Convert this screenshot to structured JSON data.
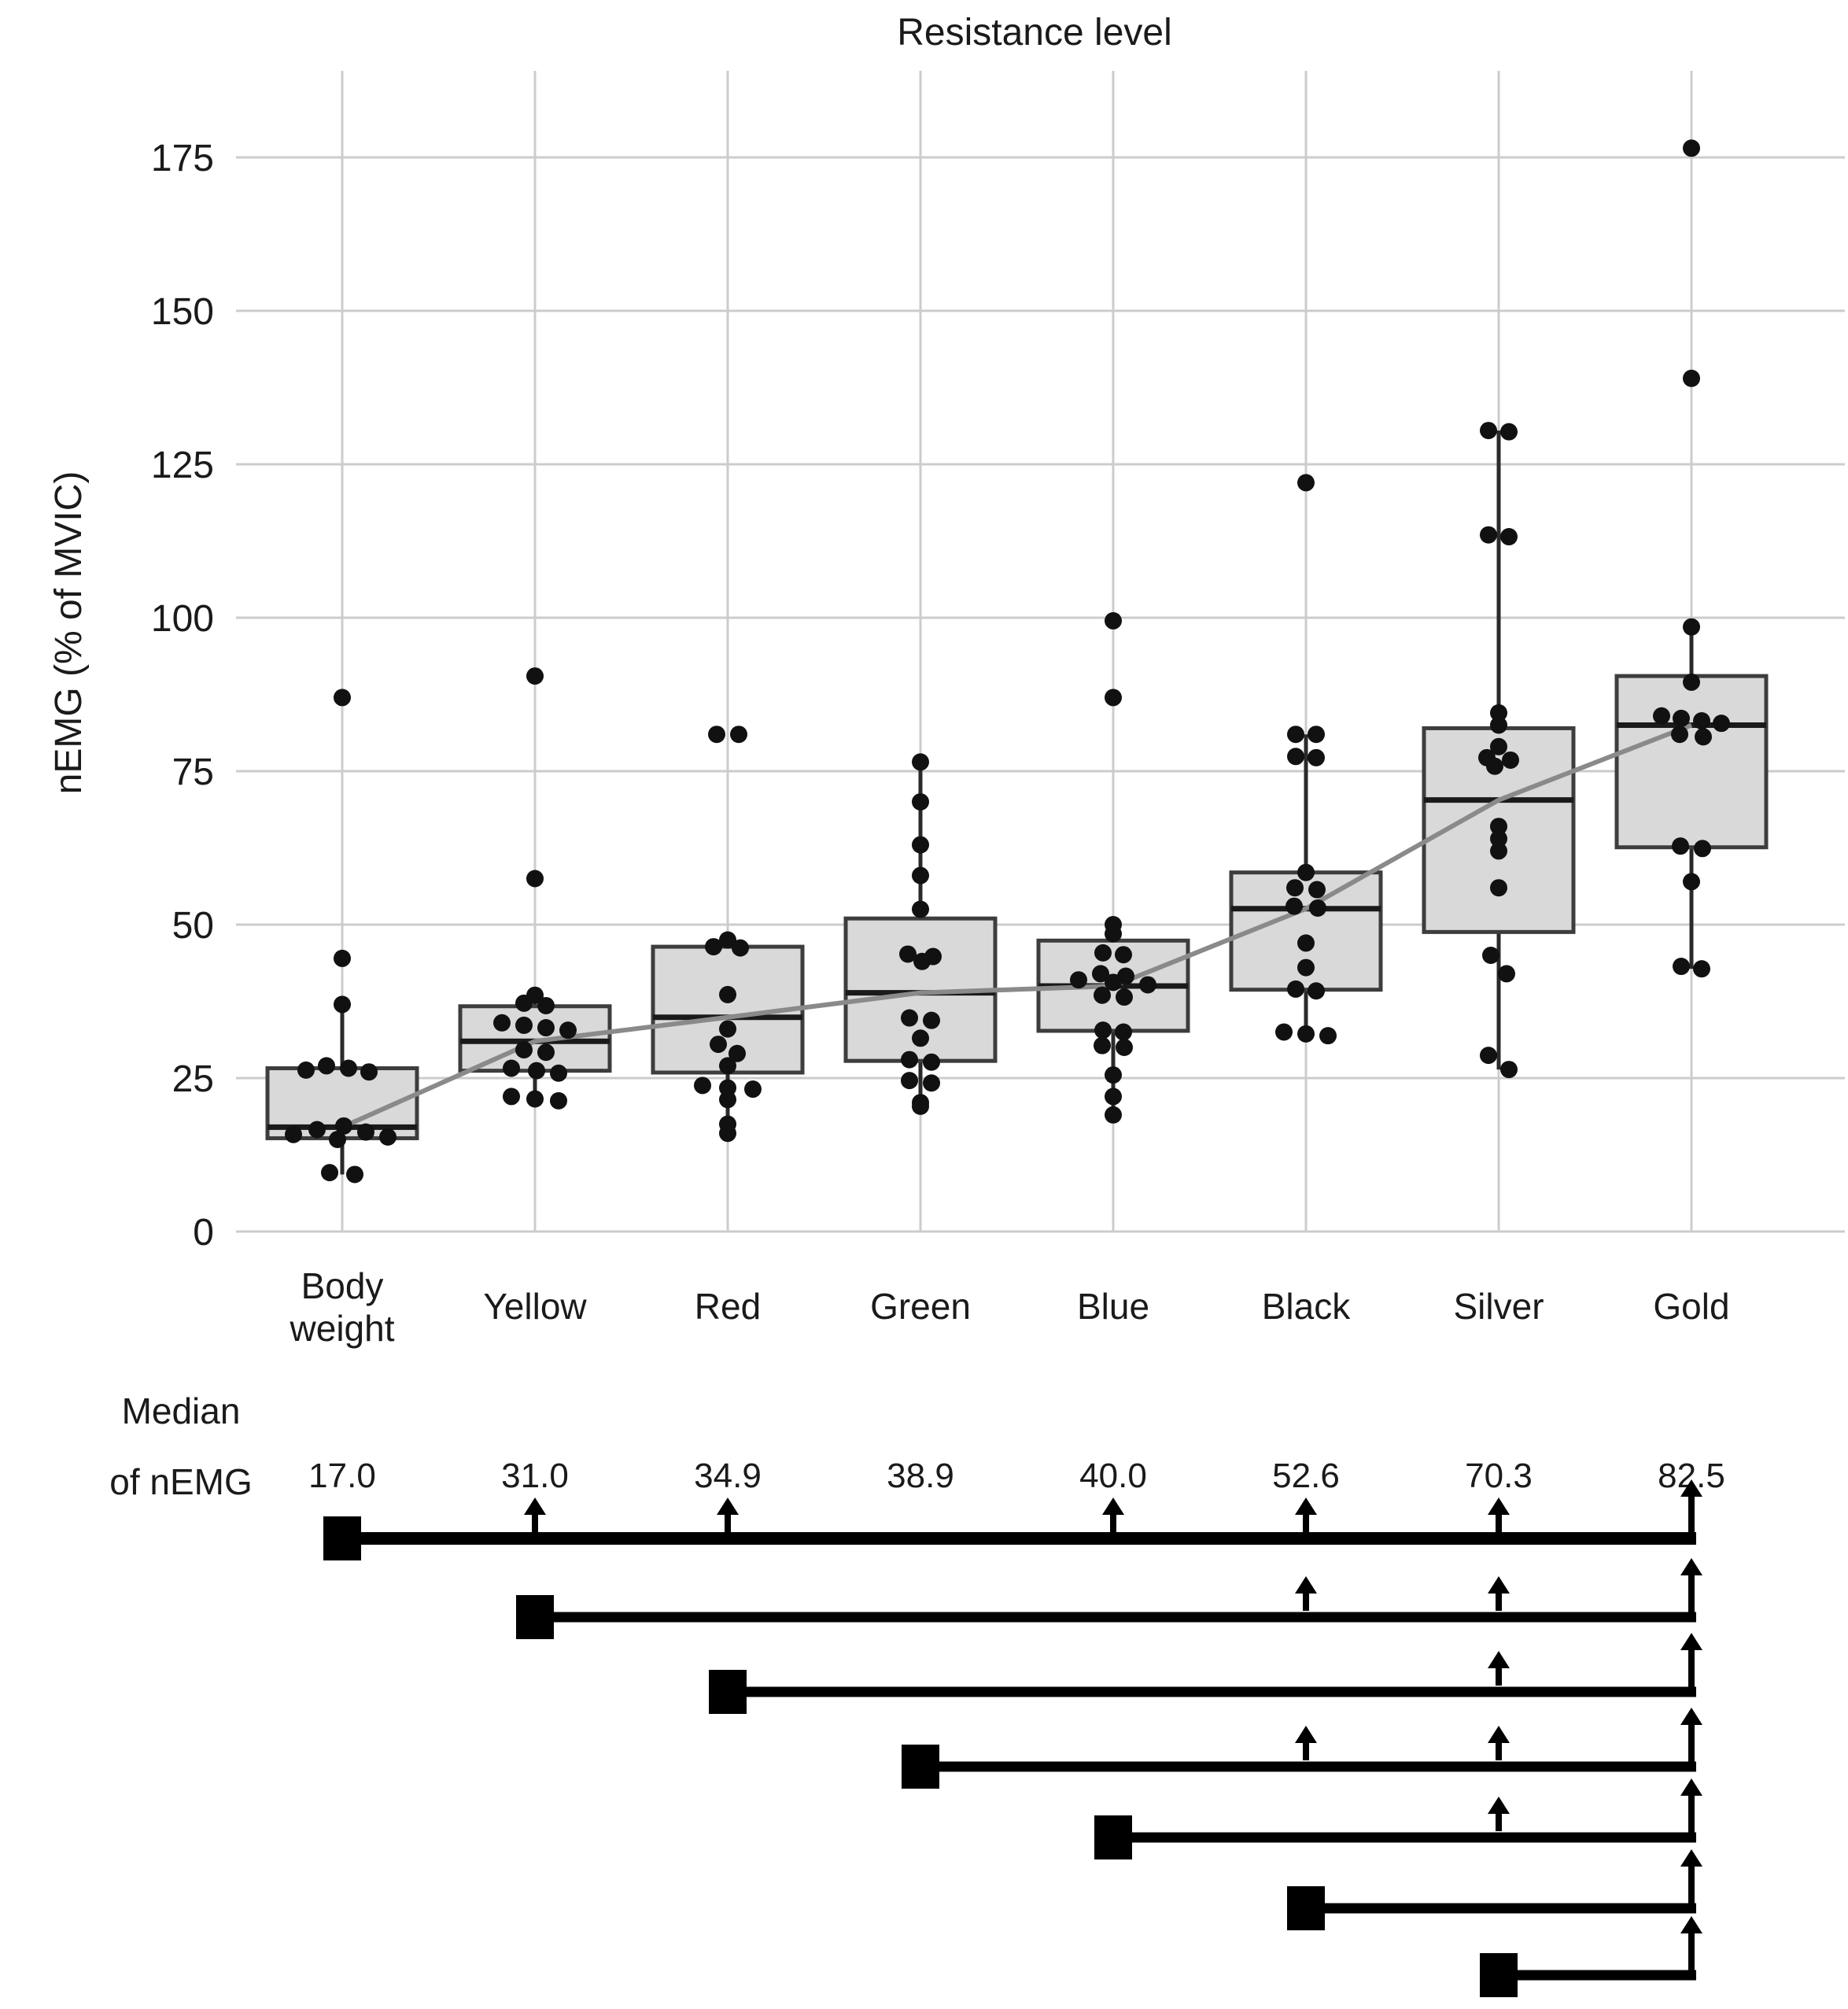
{
  "title": "Resistance level",
  "ylabel": "nEMG (% of MVIC)",
  "median_row": {
    "label_line1": "Median",
    "label_line2": "of nEMG",
    "values": [
      "17.0",
      "31.0",
      "34.9",
      "38.9",
      "40.0",
      "52.6",
      "70.3",
      "82.5"
    ]
  },
  "colors": {
    "background": "#ffffff",
    "grid": "#cccccc",
    "box_fill": "#d9d9d9",
    "box_border": "#3d3d3d",
    "median_line": "#1a1a1a",
    "whisker": "#2a2a2a",
    "dot": "#111111",
    "trend_line": "#8a8a8a",
    "significance": "#000000",
    "text": "#1a1a1a"
  },
  "chart_data": {
    "type": "box",
    "title": "Resistance level",
    "xlabel": "",
    "ylabel": "nEMG (% of MVIC)",
    "yticks": [
      0,
      25,
      50,
      75,
      100,
      125,
      150,
      175
    ],
    "ylim": [
      0,
      190
    ],
    "grid": true,
    "legend_position": "none",
    "categories": [
      "Body weight",
      "Yellow",
      "Red",
      "Green",
      "Blue",
      "Black",
      "Silver",
      "Gold"
    ],
    "category_display_lines": [
      [
        "Body",
        "weight"
      ],
      [
        "Yellow"
      ],
      [
        "Red"
      ],
      [
        "Green"
      ],
      [
        "Blue"
      ],
      [
        "Black"
      ],
      [
        "Silver"
      ],
      [
        "Gold"
      ]
    ],
    "medians": [
      17.0,
      31.0,
      34.9,
      38.9,
      40.0,
      52.6,
      70.3,
      82.5
    ],
    "trend_line_connects": "category medians",
    "boxes": [
      {
        "label": "Body weight",
        "q1": 15.2,
        "median": 17.0,
        "q3": 26.6,
        "whisker_low": 9.3,
        "whisker_high": 37,
        "points": [
          [
            87,
            0
          ],
          [
            44.5,
            0
          ],
          [
            37,
            0
          ],
          [
            27,
            -20
          ],
          [
            26.6,
            8
          ],
          [
            26.3,
            -46
          ],
          [
            26,
            34
          ],
          [
            17.2,
            2
          ],
          [
            16.6,
            -32
          ],
          [
            16.2,
            30
          ],
          [
            15.8,
            -62
          ],
          [
            15.4,
            58
          ],
          [
            15,
            -6
          ],
          [
            9.6,
            -16
          ],
          [
            9.3,
            16
          ]
        ]
      },
      {
        "label": "Yellow",
        "q1": 26.2,
        "median": 31.0,
        "q3": 36.7,
        "whisker_low": 21.3,
        "whisker_high": 38.5,
        "points": [
          [
            90.5,
            0
          ],
          [
            57.5,
            0
          ],
          [
            38.5,
            0
          ],
          [
            37.2,
            -14
          ],
          [
            36.8,
            14
          ],
          [
            34,
            -42
          ],
          [
            33.6,
            -14
          ],
          [
            33.2,
            14
          ],
          [
            32.8,
            42
          ],
          [
            29.6,
            -14
          ],
          [
            29.2,
            14
          ],
          [
            26.6,
            -30
          ],
          [
            26.2,
            2
          ],
          [
            25.8,
            30
          ],
          [
            22,
            -30
          ],
          [
            21.6,
            0
          ],
          [
            21.3,
            30
          ]
        ]
      },
      {
        "label": "Red",
        "q1": 25.9,
        "median": 34.9,
        "q3": 46.4,
        "whisker_low": 16,
        "whisker_high": 47.5,
        "points": [
          [
            81,
            -14
          ],
          [
            81,
            14
          ],
          [
            47.5,
            0
          ],
          [
            46.4,
            -18
          ],
          [
            46.2,
            16
          ],
          [
            38.6,
            0
          ],
          [
            33,
            0
          ],
          [
            30.5,
            -12
          ],
          [
            29,
            12
          ],
          [
            27,
            0
          ],
          [
            23.8,
            -32
          ],
          [
            23.4,
            0
          ],
          [
            23.2,
            32
          ],
          [
            21.5,
            0
          ],
          [
            17.5,
            0
          ],
          [
            16,
            0
          ]
        ]
      },
      {
        "label": "Green",
        "q1": 27.8,
        "median": 38.9,
        "q3": 51,
        "whisker_low": 20.4,
        "whisker_high": 76.5,
        "points": [
          [
            76.5,
            0
          ],
          [
            70,
            0
          ],
          [
            63,
            0
          ],
          [
            58,
            0
          ],
          [
            52.5,
            0
          ],
          [
            45.2,
            -16
          ],
          [
            44.8,
            16
          ],
          [
            44,
            2
          ],
          [
            34.8,
            -14
          ],
          [
            34.4,
            14
          ],
          [
            31.5,
            0
          ],
          [
            28,
            -14
          ],
          [
            27.6,
            14
          ],
          [
            24.6,
            -14
          ],
          [
            24.2,
            14
          ],
          [
            21,
            0
          ],
          [
            20.4,
            0
          ]
        ]
      },
      {
        "label": "Blue",
        "q1": 32.7,
        "median": 40.0,
        "q3": 47.4,
        "whisker_low": 19,
        "whisker_high": 50,
        "points": [
          [
            99.5,
            0
          ],
          [
            87,
            0
          ],
          [
            50,
            0
          ],
          [
            48.5,
            0
          ],
          [
            45.4,
            -13
          ],
          [
            45.1,
            13
          ],
          [
            42,
            -16
          ],
          [
            41.6,
            16
          ],
          [
            41,
            -44
          ],
          [
            40.6,
            0
          ],
          [
            40.2,
            44
          ],
          [
            38.5,
            -14
          ],
          [
            38.2,
            14
          ],
          [
            32.8,
            -13
          ],
          [
            32.5,
            13
          ],
          [
            30.3,
            -14
          ],
          [
            30,
            14
          ],
          [
            25.5,
            0
          ],
          [
            22,
            0
          ],
          [
            19,
            0
          ]
        ]
      },
      {
        "label": "Black",
        "q1": 39.4,
        "median": 52.6,
        "q3": 58.5,
        "whisker_low": 31.9,
        "whisker_high": 81,
        "points": [
          [
            122,
            0
          ],
          [
            81,
            -13
          ],
          [
            81,
            13
          ],
          [
            77.4,
            -13
          ],
          [
            77.2,
            13
          ],
          [
            58.5,
            0
          ],
          [
            56,
            -14
          ],
          [
            55.7,
            14
          ],
          [
            53,
            -15
          ],
          [
            52.7,
            15
          ],
          [
            47,
            0
          ],
          [
            43,
            0
          ],
          [
            39.5,
            -13
          ],
          [
            39.2,
            13
          ],
          [
            32.5,
            -28
          ],
          [
            32.2,
            0
          ],
          [
            31.9,
            28
          ]
        ]
      },
      {
        "label": "Silver",
        "q1": 48.8,
        "median": 70.3,
        "q3": 82,
        "whisker_low": 26.4,
        "whisker_high": 130.5,
        "points": [
          [
            130.5,
            -13
          ],
          [
            130.3,
            13
          ],
          [
            113.5,
            -13
          ],
          [
            113.2,
            13
          ],
          [
            84.5,
            0
          ],
          [
            82.5,
            0
          ],
          [
            79,
            0
          ],
          [
            77.2,
            -15
          ],
          [
            76.8,
            15
          ],
          [
            75.8,
            -5
          ],
          [
            66,
            0
          ],
          [
            64,
            0
          ],
          [
            62,
            0
          ],
          [
            56,
            0
          ],
          [
            45,
            -10
          ],
          [
            42,
            10
          ],
          [
            28.7,
            -13
          ],
          [
            26.4,
            13
          ]
        ]
      },
      {
        "label": "Gold",
        "q1": 62.6,
        "median": 82.5,
        "q3": 90.5,
        "whisker_low": 42.8,
        "whisker_high": 98.5,
        "points": [
          [
            176.5,
            0
          ],
          [
            139,
            0
          ],
          [
            98.5,
            0
          ],
          [
            89.5,
            0
          ],
          [
            84,
            -38
          ],
          [
            83.6,
            -13
          ],
          [
            83.2,
            13
          ],
          [
            82.8,
            38
          ],
          [
            81,
            -15
          ],
          [
            80.6,
            15
          ],
          [
            62.8,
            -14
          ],
          [
            62.4,
            14
          ],
          [
            57,
            0
          ],
          [
            43.2,
            -13
          ],
          [
            42.8,
            13
          ]
        ]
      }
    ],
    "significance_rows": [
      {
        "from": "Body weight",
        "to": "Gold",
        "mid_arrows": [
          "Yellow",
          "Red",
          "Blue",
          "Black",
          "Silver"
        ],
        "end_arrow": "Gold"
      },
      {
        "from": "Yellow",
        "to": "Gold",
        "mid_arrows": [
          "Black",
          "Silver"
        ],
        "end_arrow": "Gold"
      },
      {
        "from": "Red",
        "to": "Gold",
        "mid_arrows": [
          "Silver"
        ],
        "end_arrow": "Gold"
      },
      {
        "from": "Green",
        "to": "Gold",
        "mid_arrows": [
          "Black",
          "Silver"
        ],
        "end_arrow": "Gold"
      },
      {
        "from": "Blue",
        "to": "Gold",
        "mid_arrows": [
          "Silver"
        ],
        "end_arrow": "Gold"
      },
      {
        "from": "Black",
        "to": "Gold",
        "mid_arrows": [],
        "end_arrow": "Gold"
      },
      {
        "from": "Silver",
        "to": "Gold",
        "mid_arrows": [],
        "end_arrow": "Gold"
      }
    ]
  }
}
